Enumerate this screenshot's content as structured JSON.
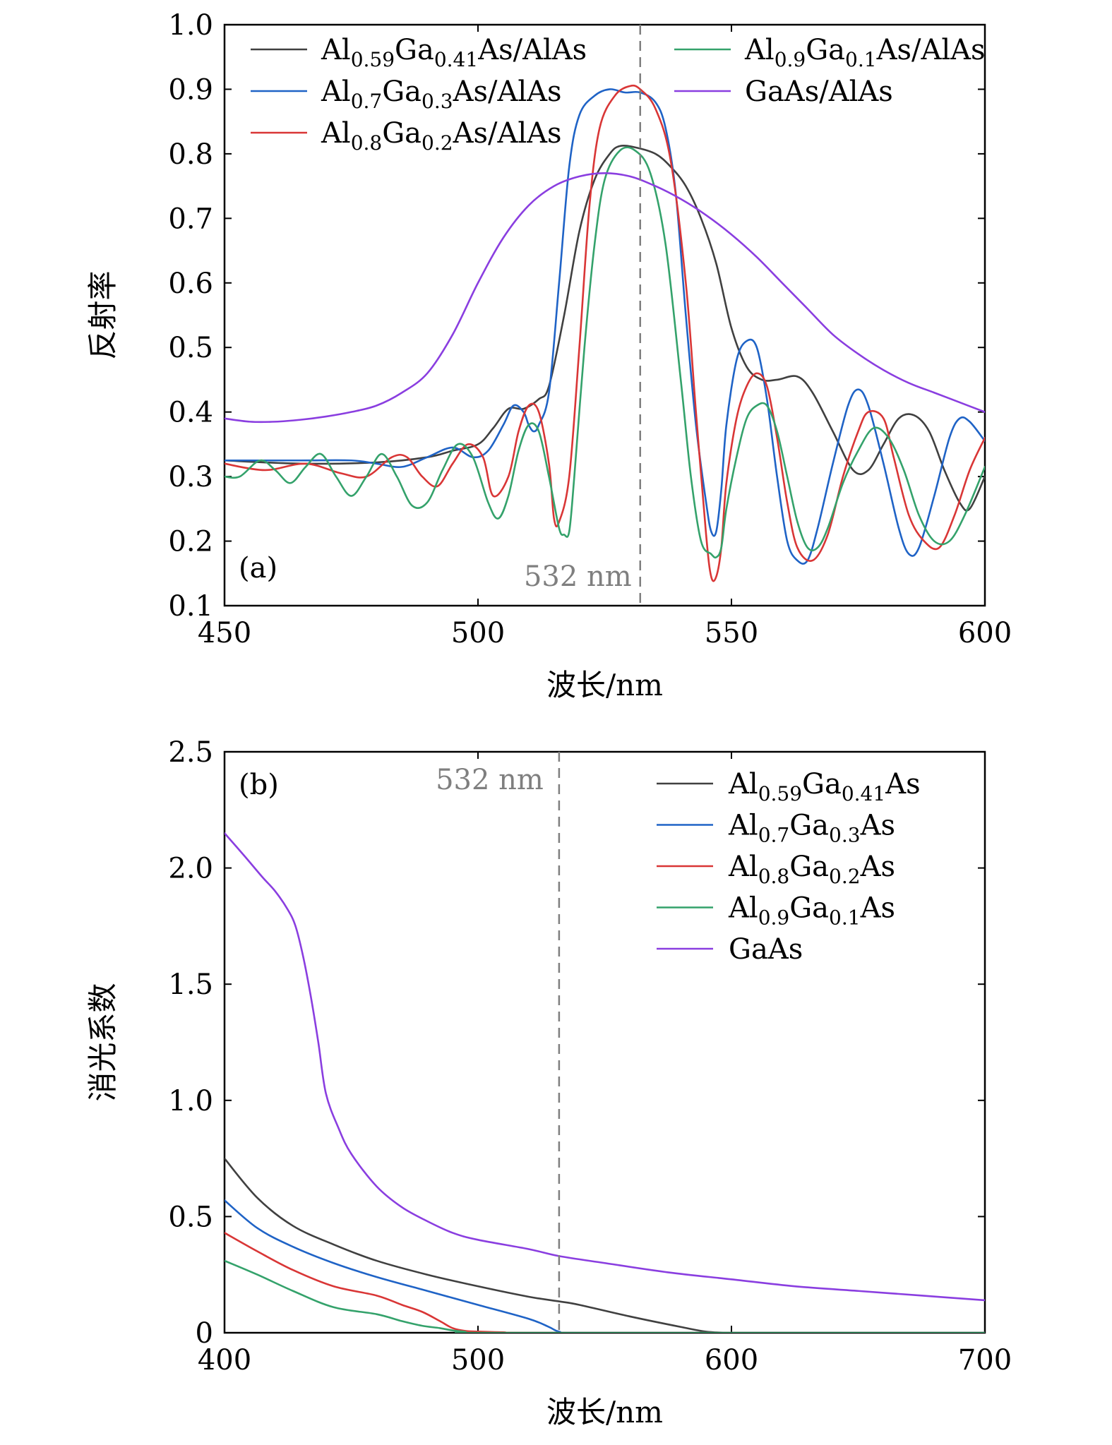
{
  "chart_data": [
    {
      "id": "a",
      "type": "line",
      "panel_label": "(a)",
      "xlabel": "波长/nm",
      "ylabel": "反射率",
      "xlim": [
        450,
        600
      ],
      "ylim": [
        0.1,
        1.0
      ],
      "xticks": [
        "450",
        "500",
        "550",
        "600"
      ],
      "yticks": [
        "0.1",
        "0.2",
        "0.3",
        "0.4",
        "0.5",
        "0.6",
        "0.7",
        "0.8",
        "0.9",
        "1.0"
      ],
      "reference_line": {
        "x": 532,
        "label": "532 nm"
      },
      "legend_location": "top",
      "series": [
        {
          "name": "Al0.59Ga0.41As/AlAs",
          "legend": {
            "parts": [
              [
                "Al",
                ""
              ],
              [
                "0.59",
                "sub"
              ],
              [
                "Ga",
                ""
              ],
              [
                "0.41",
                "sub"
              ],
              [
                "As/AlAs",
                ""
              ]
            ]
          },
          "color": "#404040",
          "x": [
            450,
            465,
            480,
            490,
            495,
            500,
            503,
            506,
            509,
            512,
            514,
            517,
            520,
            523,
            526,
            528,
            531,
            535,
            538,
            541,
            544,
            547,
            550,
            553,
            556,
            559,
            563,
            566,
            570,
            574,
            577,
            580,
            583,
            586,
            589,
            592,
            595,
            597,
            600
          ],
          "y": [
            0.325,
            0.32,
            0.322,
            0.33,
            0.34,
            0.35,
            0.375,
            0.405,
            0.405,
            0.42,
            0.44,
            0.55,
            0.68,
            0.76,
            0.8,
            0.812,
            0.81,
            0.8,
            0.78,
            0.75,
            0.7,
            0.63,
            0.53,
            0.47,
            0.45,
            0.45,
            0.455,
            0.43,
            0.37,
            0.31,
            0.31,
            0.35,
            0.39,
            0.395,
            0.37,
            0.31,
            0.26,
            0.25,
            0.3
          ]
        },
        {
          "name": "Al0.7Ga0.3As/AlAs",
          "legend": {
            "parts": [
              [
                "Al",
                ""
              ],
              [
                "0.7",
                "sub"
              ],
              [
                "Ga",
                ""
              ],
              [
                "0.3",
                "sub"
              ],
              [
                "As/AlAs",
                ""
              ]
            ]
          },
          "color": "#1f63c6",
          "x": [
            450,
            465,
            475,
            480,
            485,
            490,
            495,
            499,
            502,
            505,
            507,
            509,
            510,
            511,
            512,
            514,
            516,
            518,
            520,
            523,
            526,
            529,
            532,
            535,
            537,
            539,
            541,
            543,
            545,
            546,
            547,
            548,
            549,
            551,
            553,
            555,
            557,
            559,
            561,
            563,
            565,
            567,
            570,
            573,
            575,
            577,
            580,
            583,
            585,
            587,
            590,
            593,
            595,
            597,
            600
          ],
          "y": [
            0.325,
            0.325,
            0.325,
            0.32,
            0.315,
            0.33,
            0.345,
            0.33,
            0.34,
            0.38,
            0.41,
            0.4,
            0.38,
            0.37,
            0.38,
            0.43,
            0.6,
            0.78,
            0.86,
            0.89,
            0.9,
            0.895,
            0.895,
            0.88,
            0.84,
            0.74,
            0.55,
            0.38,
            0.26,
            0.215,
            0.215,
            0.28,
            0.38,
            0.48,
            0.51,
            0.5,
            0.42,
            0.3,
            0.2,
            0.17,
            0.17,
            0.22,
            0.32,
            0.41,
            0.435,
            0.41,
            0.32,
            0.22,
            0.18,
            0.19,
            0.27,
            0.36,
            0.39,
            0.385,
            0.355
          ]
        },
        {
          "name": "Al0.8Ga0.2As/AlAs",
          "legend": {
            "parts": [
              [
                "Al",
                ""
              ],
              [
                "0.8",
                "sub"
              ],
              [
                "Ga",
                ""
              ],
              [
                "0.2",
                "sub"
              ],
              [
                "As/AlAs",
                ""
              ]
            ]
          },
          "color": "#d93636",
          "x": [
            450,
            458,
            466,
            473,
            478,
            483,
            486,
            489,
            492,
            495,
            498,
            501,
            503,
            506,
            508,
            510,
            512,
            514,
            515,
            516,
            518,
            520,
            522,
            524,
            527,
            530,
            532,
            535,
            538,
            541,
            543,
            545,
            546,
            547,
            548,
            549,
            551,
            553,
            555,
            557,
            559,
            561,
            563,
            566,
            569,
            572,
            575,
            577,
            580,
            582,
            585,
            588,
            591,
            594,
            597,
            600
          ],
          "y": [
            0.32,
            0.31,
            0.32,
            0.305,
            0.3,
            0.33,
            0.33,
            0.3,
            0.285,
            0.32,
            0.35,
            0.33,
            0.27,
            0.3,
            0.37,
            0.41,
            0.4,
            0.32,
            0.235,
            0.23,
            0.3,
            0.5,
            0.72,
            0.84,
            0.89,
            0.905,
            0.9,
            0.87,
            0.79,
            0.6,
            0.4,
            0.21,
            0.145,
            0.145,
            0.19,
            0.29,
            0.39,
            0.44,
            0.46,
            0.44,
            0.36,
            0.26,
            0.19,
            0.17,
            0.21,
            0.3,
            0.37,
            0.4,
            0.39,
            0.33,
            0.24,
            0.2,
            0.19,
            0.24,
            0.31,
            0.36
          ]
        },
        {
          "name": "Al0.9Ga0.1As/AlAs",
          "legend": {
            "parts": [
              [
                "Al",
                ""
              ],
              [
                "0.9",
                "sub"
              ],
              [
                "Ga",
                ""
              ],
              [
                "0.1",
                "sub"
              ],
              [
                "As/AlAs",
                ""
              ]
            ]
          },
          "color": "#34a26b",
          "x": [
            450,
            453,
            457,
            460,
            463,
            466,
            469,
            472,
            475,
            478,
            481,
            484,
            487,
            490,
            493,
            496,
            499,
            502,
            504,
            506,
            508,
            510,
            512,
            514,
            516,
            517,
            518,
            519,
            521,
            523,
            525,
            528,
            531,
            534,
            537,
            540,
            542,
            544,
            546,
            547,
            548,
            549,
            551,
            553,
            555,
            557,
            559,
            561,
            563,
            565,
            567,
            569,
            572,
            575,
            578,
            581,
            584,
            587,
            590,
            593,
            596,
            600
          ],
          "y": [
            0.3,
            0.3,
            0.325,
            0.31,
            0.29,
            0.315,
            0.335,
            0.3,
            0.27,
            0.3,
            0.335,
            0.3,
            0.255,
            0.26,
            0.31,
            0.35,
            0.33,
            0.26,
            0.235,
            0.27,
            0.34,
            0.38,
            0.37,
            0.3,
            0.22,
            0.21,
            0.215,
            0.3,
            0.5,
            0.66,
            0.76,
            0.805,
            0.805,
            0.77,
            0.66,
            0.45,
            0.3,
            0.2,
            0.18,
            0.175,
            0.19,
            0.25,
            0.33,
            0.39,
            0.41,
            0.41,
            0.37,
            0.3,
            0.23,
            0.19,
            0.19,
            0.22,
            0.29,
            0.34,
            0.375,
            0.36,
            0.31,
            0.24,
            0.2,
            0.2,
            0.24,
            0.315
          ]
        },
        {
          "name": "GaAs/AlAs",
          "legend": {
            "parts": [
              [
                "GaAs/AlAs",
                ""
              ]
            ]
          },
          "color": "#8a3ee0",
          "x": [
            450,
            455,
            460,
            465,
            470,
            475,
            480,
            485,
            490,
            495,
            500,
            505,
            510,
            515,
            520,
            525,
            530,
            535,
            540,
            545,
            550,
            555,
            560,
            565,
            570,
            575,
            580,
            585,
            590,
            595,
            600
          ],
          "y": [
            0.39,
            0.385,
            0.385,
            0.388,
            0.393,
            0.4,
            0.41,
            0.43,
            0.46,
            0.52,
            0.6,
            0.67,
            0.72,
            0.75,
            0.765,
            0.77,
            0.765,
            0.75,
            0.73,
            0.705,
            0.675,
            0.64,
            0.6,
            0.56,
            0.52,
            0.49,
            0.465,
            0.445,
            0.43,
            0.415,
            0.4
          ]
        }
      ]
    },
    {
      "id": "b",
      "type": "line",
      "panel_label": "(b)",
      "xlabel": "波长/nm",
      "ylabel": "消光系数",
      "xlim": [
        400,
        700
      ],
      "ylim": [
        0,
        2.5
      ],
      "xticks": [
        "400",
        "500",
        "600",
        "700"
      ],
      "yticks": [
        "0",
        "0.5",
        "1.0",
        "1.5",
        "2.0",
        "2.5"
      ],
      "reference_line": {
        "x": 532,
        "label": "532 nm"
      },
      "legend_location": "top-right",
      "series": [
        {
          "name": "Al0.59Ga0.41As",
          "legend": {
            "parts": [
              [
                "Al",
                ""
              ],
              [
                "0.59",
                "sub"
              ],
              [
                "Ga",
                ""
              ],
              [
                "0.41",
                "sub"
              ],
              [
                "As",
                ""
              ]
            ]
          },
          "color": "#404040",
          "x": [
            400,
            413,
            427,
            443,
            460,
            480,
            500,
            520,
            532,
            540,
            560,
            580,
            590,
            600,
            620,
            650,
            700
          ],
          "y": [
            0.75,
            0.58,
            0.46,
            0.38,
            0.31,
            0.25,
            0.2,
            0.155,
            0.135,
            0.12,
            0.07,
            0.025,
            0.005,
            0.0,
            0.0,
            0.0,
            0.0
          ]
        },
        {
          "name": "Al0.7Ga0.3As",
          "legend": {
            "parts": [
              [
                "Al",
                ""
              ],
              [
                "0.7",
                "sub"
              ],
              [
                "Ga",
                ""
              ],
              [
                "0.3",
                "sub"
              ],
              [
                "As",
                ""
              ]
            ]
          },
          "color": "#1f63c6",
          "x": [
            400,
            413,
            427,
            443,
            460,
            480,
            500,
            520,
            528,
            532,
            540,
            600,
            700
          ],
          "y": [
            0.57,
            0.45,
            0.37,
            0.3,
            0.24,
            0.18,
            0.12,
            0.06,
            0.025,
            0.005,
            0.0,
            0.0,
            0.0
          ]
        },
        {
          "name": "Al0.8Ga0.2As",
          "legend": {
            "parts": [
              [
                "Al",
                ""
              ],
              [
                "0.8",
                "sub"
              ],
              [
                "Ga",
                ""
              ],
              [
                "0.2",
                "sub"
              ],
              [
                "As",
                ""
              ]
            ]
          },
          "color": "#d93636",
          "x": [
            400,
            413,
            427,
            443,
            460,
            470,
            478,
            485,
            490,
            495,
            500,
            510,
            520,
            600,
            700
          ],
          "y": [
            0.43,
            0.35,
            0.27,
            0.2,
            0.16,
            0.12,
            0.09,
            0.05,
            0.02,
            0.008,
            0.005,
            0.002,
            0.0,
            0.0,
            0.0
          ]
        },
        {
          "name": "Al0.9Ga0.1As",
          "legend": {
            "parts": [
              [
                "Al",
                ""
              ],
              [
                "0.9",
                "sub"
              ],
              [
                "Ga",
                ""
              ],
              [
                "0.1",
                "sub"
              ],
              [
                "As",
                ""
              ]
            ]
          },
          "color": "#34a26b",
          "x": [
            400,
            413,
            427,
            443,
            460,
            470,
            478,
            485,
            490,
            495,
            500,
            600,
            700
          ],
          "y": [
            0.31,
            0.25,
            0.18,
            0.11,
            0.08,
            0.05,
            0.03,
            0.02,
            0.01,
            0.004,
            0.0,
            0.0,
            0.0
          ]
        },
        {
          "name": "GaAs",
          "legend": {
            "parts": [
              [
                "GaAs",
                ""
              ]
            ]
          },
          "color": "#8a3ee0",
          "x": [
            400,
            408,
            415,
            420,
            425,
            428,
            431,
            434,
            437,
            440,
            445,
            450,
            460,
            470,
            480,
            490,
            500,
            520,
            532,
            550,
            575,
            600,
            625,
            650,
            675,
            700
          ],
          "y": [
            2.15,
            2.05,
            1.96,
            1.9,
            1.82,
            1.75,
            1.62,
            1.45,
            1.25,
            1.03,
            0.88,
            0.77,
            0.63,
            0.54,
            0.48,
            0.43,
            0.4,
            0.36,
            0.33,
            0.3,
            0.26,
            0.23,
            0.2,
            0.18,
            0.16,
            0.14
          ]
        }
      ]
    }
  ]
}
